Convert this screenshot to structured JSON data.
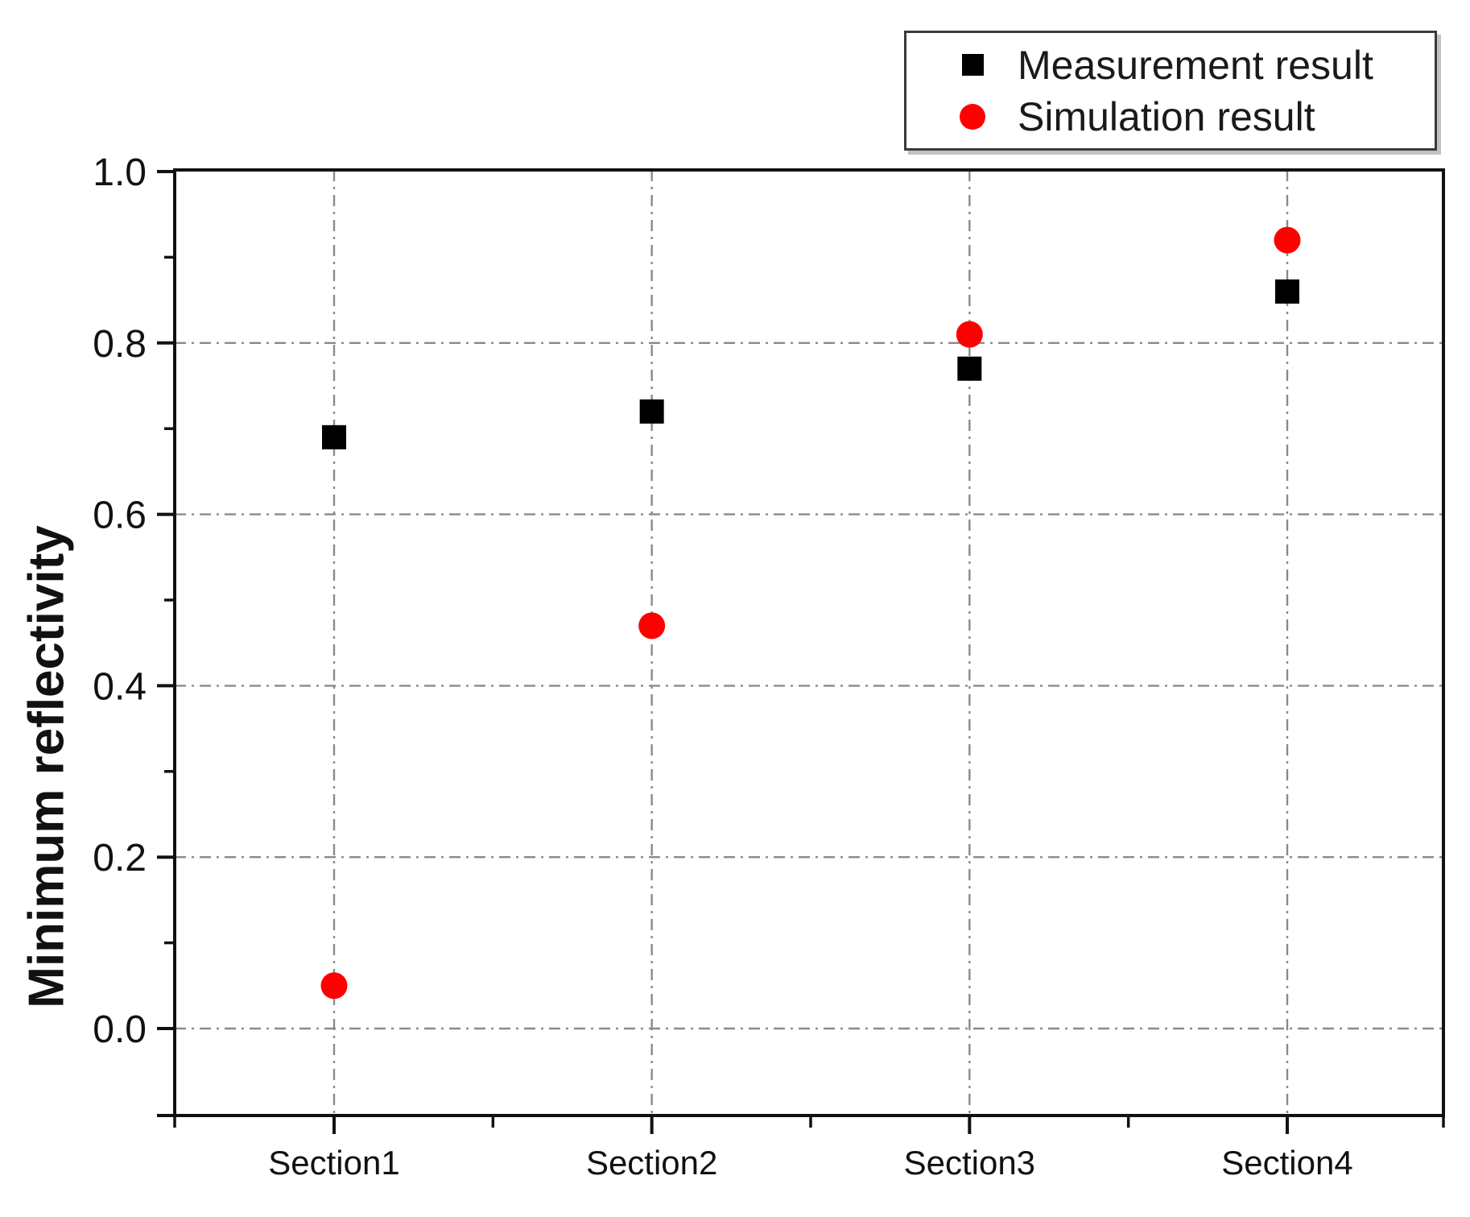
{
  "figure": {
    "background": "#ffffff"
  },
  "chart_data": {
    "type": "scatter",
    "title": "",
    "xlabel": "",
    "ylabel": "Minimum reflectivity",
    "categories": [
      "Section1",
      "Section2",
      "Section3",
      "Section4"
    ],
    "series": [
      {
        "name": "Measurement result",
        "marker": "square",
        "color": "#000000",
        "values": [
          0.69,
          0.72,
          0.77,
          0.86
        ]
      },
      {
        "name": "Simulation result",
        "marker": "circle",
        "color": "#ff0000",
        "values": [
          0.05,
          0.47,
          0.81,
          0.92
        ]
      }
    ],
    "ylim": [
      -0.1,
      1.0
    ],
    "y_ticks": [
      0.0,
      0.2,
      0.4,
      0.6,
      0.8,
      1.0
    ],
    "y_tick_labels": [
      "0.0",
      "0.2",
      "0.4",
      "0.6",
      "0.8",
      "1.0"
    ],
    "y_minor_ticks": [
      0.1,
      0.3,
      0.5,
      0.7,
      0.9
    ],
    "grid": "dash-dot",
    "grid_color": "#8a8a8a",
    "axis_color": "#111111",
    "legend_position": "top-right"
  }
}
